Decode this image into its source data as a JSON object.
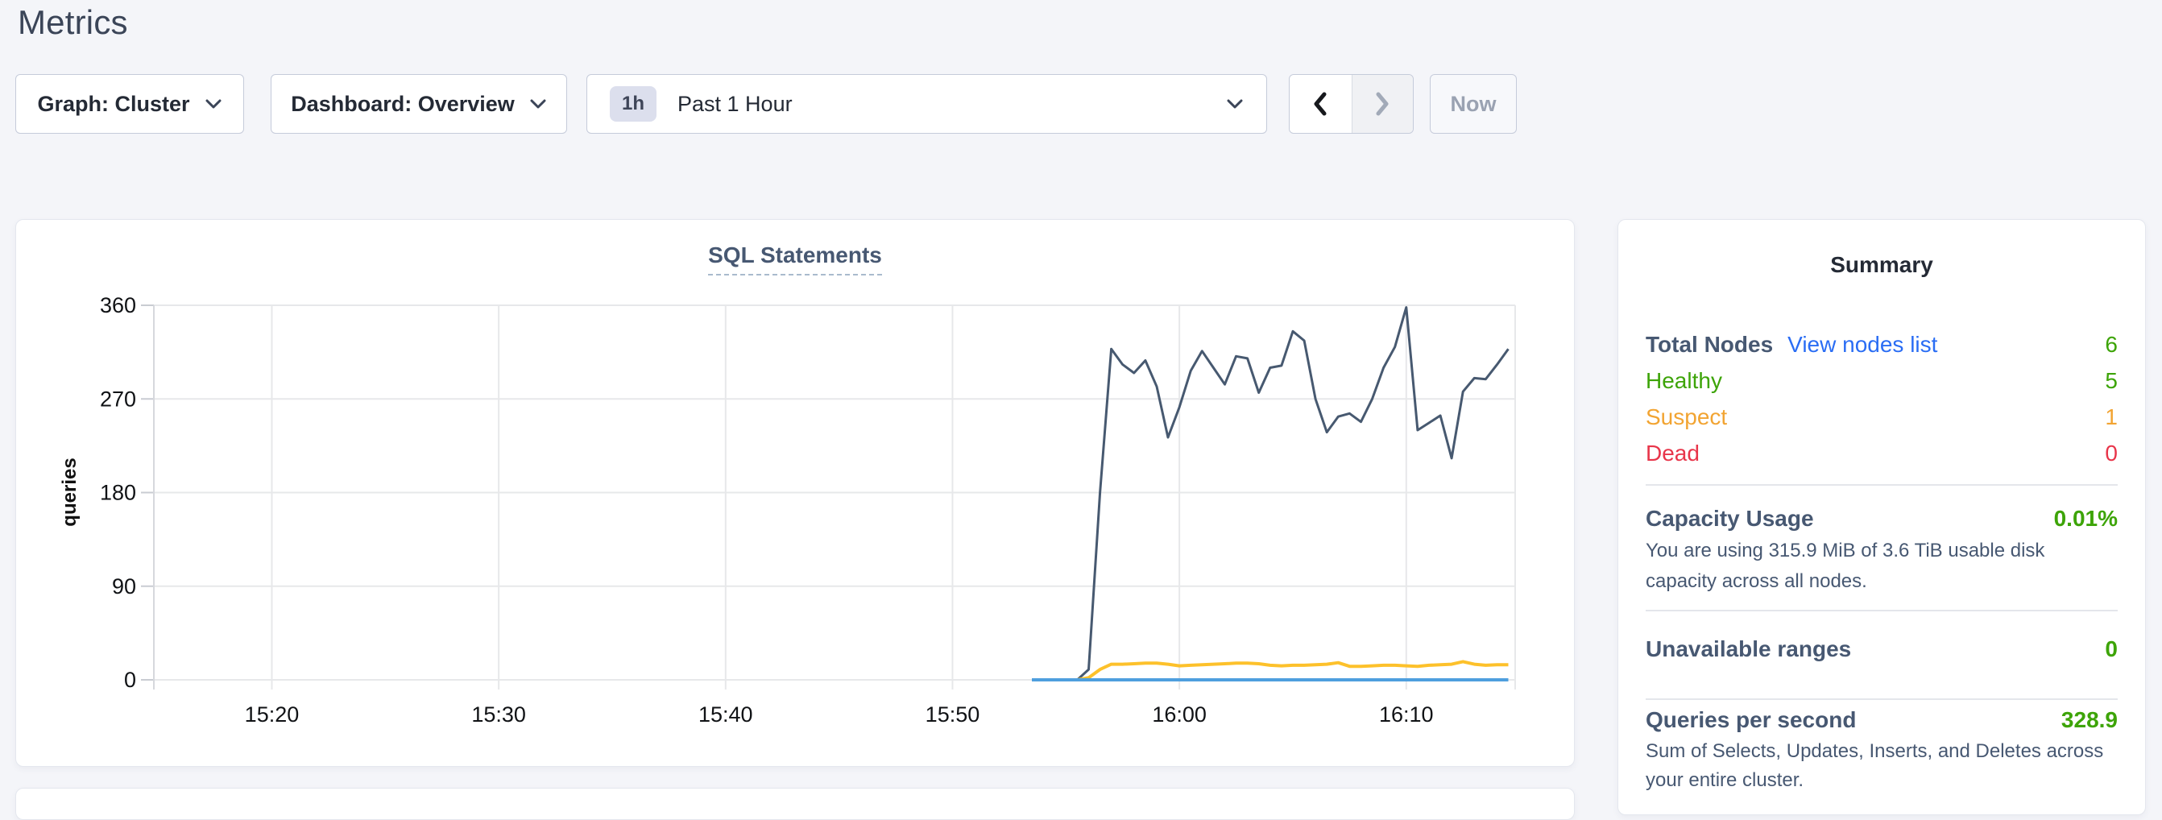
{
  "page": {
    "title": "Metrics"
  },
  "toolbar": {
    "graph_dropdown": {
      "label": "Graph: Cluster"
    },
    "dashboard_dropdown": {
      "label": "Dashboard: Overview"
    },
    "time_selector": {
      "badge": "1h",
      "label": "Past 1 Hour"
    },
    "now_button": {
      "label": "Now"
    }
  },
  "chart_data": {
    "type": "line",
    "title": "SQL Statements",
    "xlabel": "",
    "ylabel": "queries",
    "ylim": [
      0,
      360
    ],
    "yticks": [
      0,
      90,
      180,
      270,
      360
    ],
    "x_range": [
      14.8,
      74.8
    ],
    "x_unit": "minutes-after-15:00",
    "xticks": [
      {
        "t": 20,
        "label": "15:20"
      },
      {
        "t": 30,
        "label": "15:30"
      },
      {
        "t": 40,
        "label": "15:40"
      },
      {
        "t": 50,
        "label": "15:50"
      },
      {
        "t": 60,
        "label": "16:00"
      },
      {
        "t": 70,
        "label": "16:10"
      }
    ],
    "grid": true,
    "legend": false,
    "series": [
      {
        "name": "series-navy",
        "color": "#475970",
        "width": 3,
        "points": [
          [
            53.5,
            0
          ],
          [
            54,
            0
          ],
          [
            54.5,
            0
          ],
          [
            55,
            0
          ],
          [
            55.5,
            0
          ],
          [
            56,
            10
          ],
          [
            56.5,
            180
          ],
          [
            57,
            318
          ],
          [
            57.5,
            303
          ],
          [
            58,
            295
          ],
          [
            58.5,
            307
          ],
          [
            59,
            282
          ],
          [
            59.5,
            233
          ],
          [
            60,
            262
          ],
          [
            60.5,
            297
          ],
          [
            61,
            316
          ],
          [
            61.5,
            300
          ],
          [
            62,
            284
          ],
          [
            62.5,
            311
          ],
          [
            63,
            309
          ],
          [
            63.5,
            276
          ],
          [
            64,
            300
          ],
          [
            64.5,
            302
          ],
          [
            65,
            335
          ],
          [
            65.5,
            326
          ],
          [
            66,
            270
          ],
          [
            66.5,
            238
          ],
          [
            67,
            253
          ],
          [
            67.5,
            256
          ],
          [
            68,
            248
          ],
          [
            68.5,
            270
          ],
          [
            69,
            300
          ],
          [
            69.5,
            320
          ],
          [
            70,
            358
          ],
          [
            70.5,
            240
          ],
          [
            71,
            247
          ],
          [
            71.5,
            254
          ],
          [
            72,
            213
          ],
          [
            72.5,
            277
          ],
          [
            73,
            290
          ],
          [
            73.5,
            289
          ],
          [
            74,
            303
          ],
          [
            74.5,
            318
          ]
        ]
      },
      {
        "name": "series-yellow",
        "color": "#fdc12b",
        "width": 4,
        "points": [
          [
            53.5,
            0
          ],
          [
            54,
            0
          ],
          [
            54.5,
            0
          ],
          [
            55,
            0
          ],
          [
            55.5,
            0
          ],
          [
            56,
            2
          ],
          [
            56.5,
            10
          ],
          [
            57,
            15
          ],
          [
            57.5,
            15
          ],
          [
            58,
            15.5
          ],
          [
            58.5,
            16
          ],
          [
            59,
            16
          ],
          [
            59.5,
            15
          ],
          [
            60,
            13.5
          ],
          [
            60.5,
            14
          ],
          [
            61,
            14.5
          ],
          [
            61.5,
            15
          ],
          [
            62,
            15.5
          ],
          [
            62.5,
            16
          ],
          [
            63,
            16
          ],
          [
            63.5,
            15.5
          ],
          [
            64,
            14
          ],
          [
            64.5,
            13.5
          ],
          [
            65,
            14
          ],
          [
            65.5,
            14
          ],
          [
            66,
            14.5
          ],
          [
            66.5,
            15
          ],
          [
            67,
            16.5
          ],
          [
            67.5,
            13
          ],
          [
            68,
            13
          ],
          [
            68.5,
            13.5
          ],
          [
            69,
            14
          ],
          [
            69.5,
            14
          ],
          [
            70,
            13.5
          ],
          [
            70.5,
            13
          ],
          [
            71,
            14
          ],
          [
            71.5,
            14.5
          ],
          [
            72,
            15
          ],
          [
            72.5,
            17.5
          ],
          [
            73,
            15
          ],
          [
            73.5,
            14
          ],
          [
            74,
            14.5
          ],
          [
            74.5,
            14.5
          ]
        ]
      },
      {
        "name": "series-blue",
        "color": "#4e9fde",
        "width": 4,
        "points": [
          [
            53.5,
            0
          ],
          [
            74.5,
            0
          ]
        ]
      }
    ]
  },
  "summary": {
    "title": "Summary",
    "nodes": {
      "label": "Total Nodes",
      "link": "View nodes list",
      "value": "6",
      "rows": [
        {
          "label": "Healthy",
          "value": "5"
        },
        {
          "label": "Suspect",
          "value": "1"
        },
        {
          "label": "Dead",
          "value": "0"
        }
      ]
    },
    "capacity": {
      "label": "Capacity Usage",
      "value": "0.01%",
      "description": "You are using 315.9 MiB of 3.6 TiB usable disk capacity across all nodes."
    },
    "unavailable": {
      "label": "Unavailable ranges",
      "value": "0"
    },
    "qps": {
      "label": "Queries per second",
      "value": "328.9",
      "description": "Sum of Selects, Updates, Inserts, and Deletes across your entire cluster."
    }
  },
  "colors": {
    "green": "#3da408",
    "orange": "#f2a432",
    "red": "#e8354a",
    "link_blue": "#2a6df4"
  }
}
